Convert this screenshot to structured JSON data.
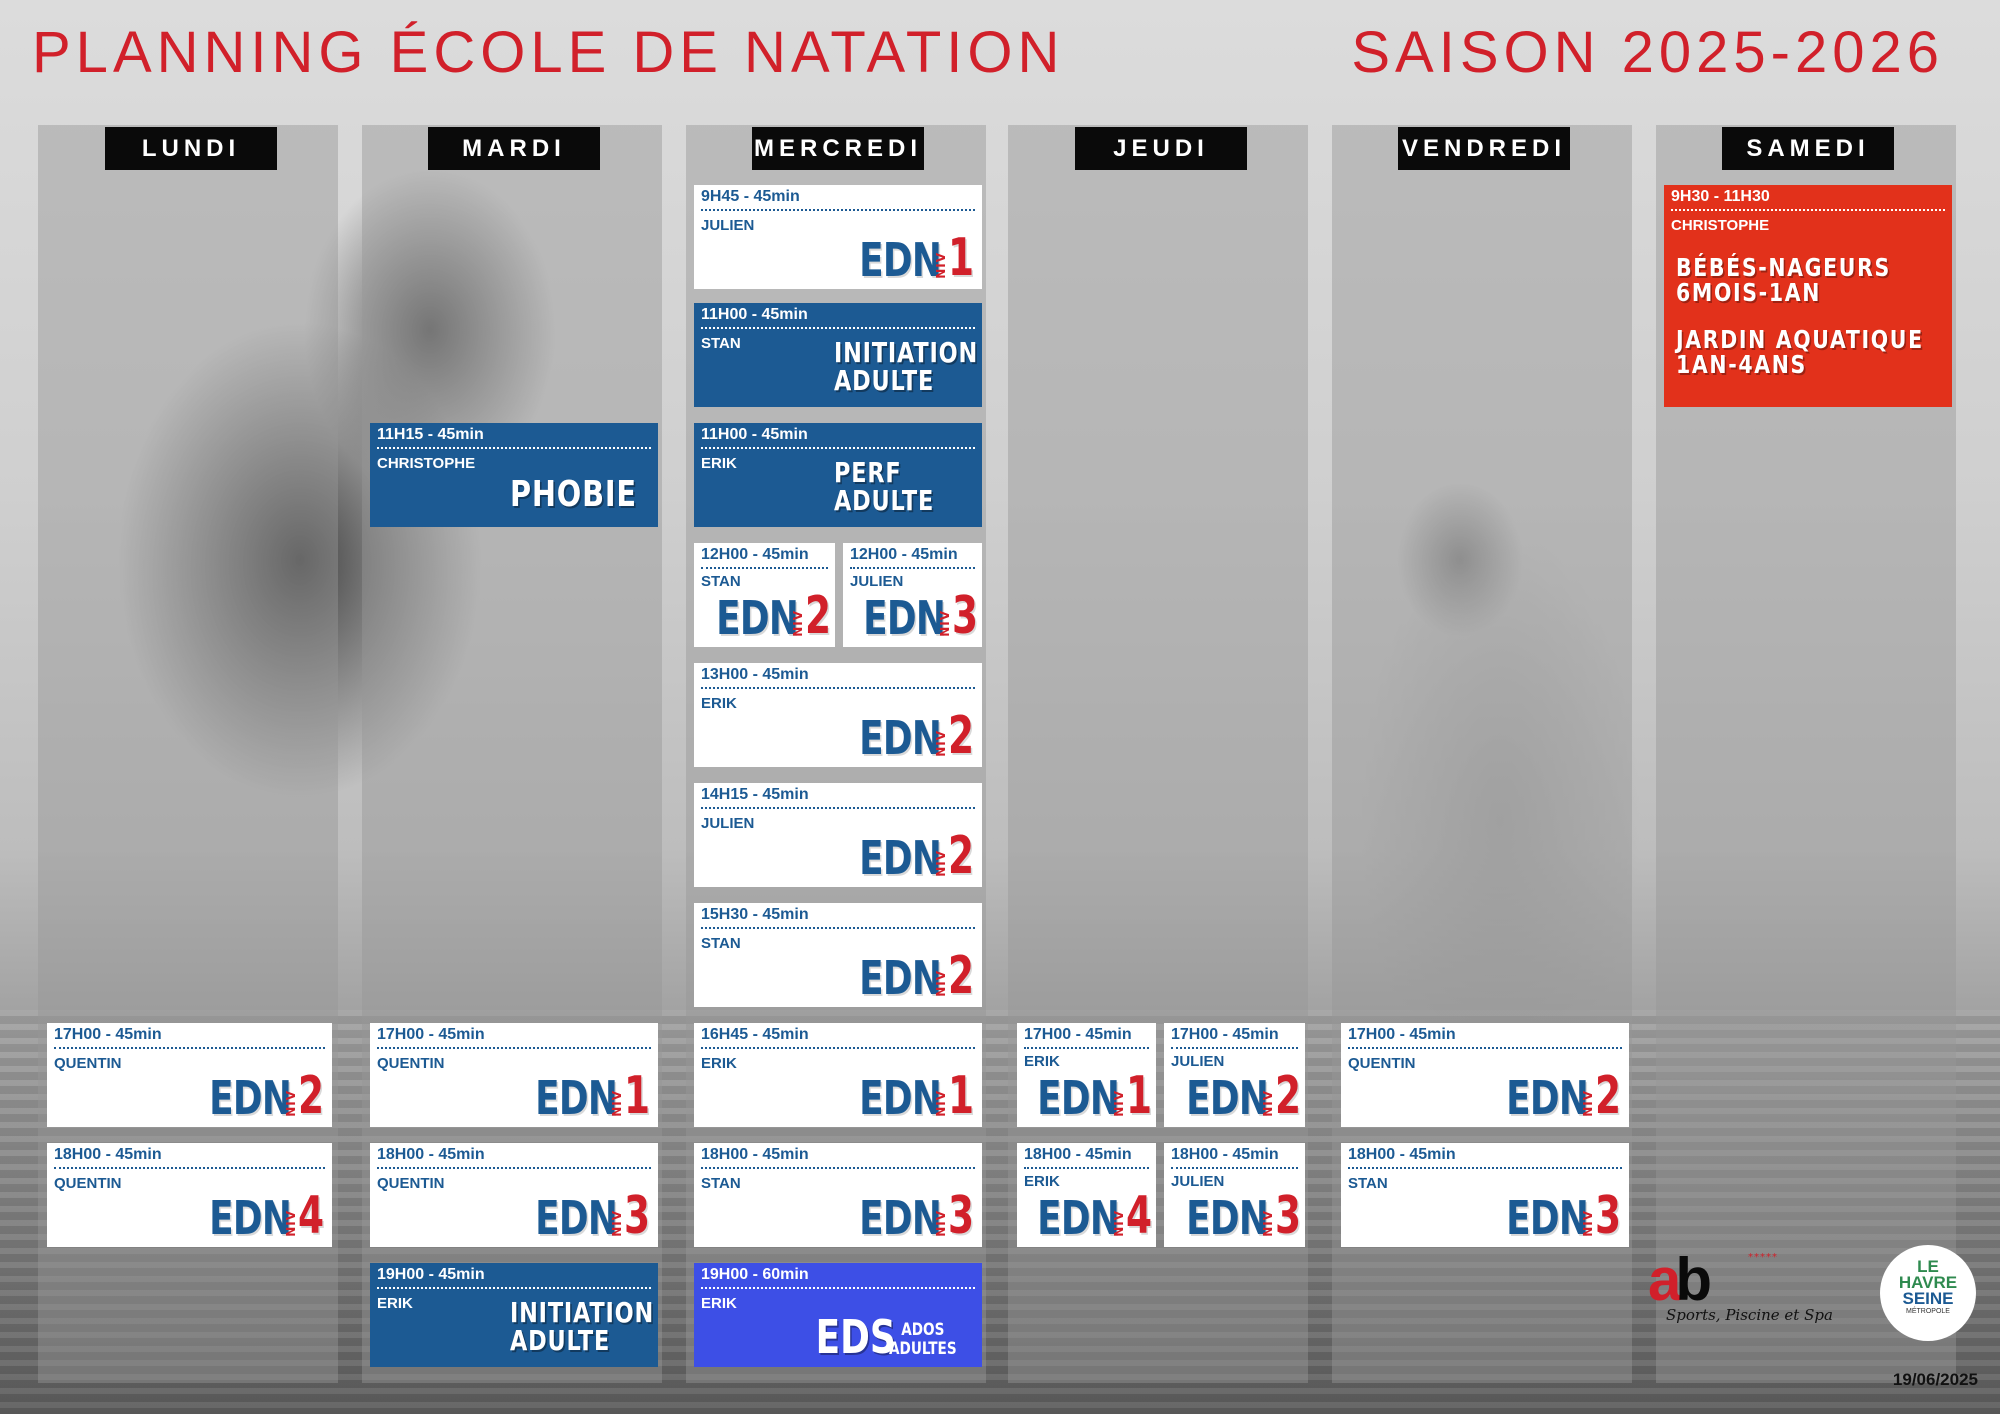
{
  "header": {
    "title": "PLANNING ÉCOLE DE NATATION",
    "season": "SAISON 2025-2026"
  },
  "days": [
    "LUNDI",
    "MARDI",
    "MERCREDI",
    "JEUDI",
    "VENDREDI",
    "SAMEDI"
  ],
  "sessions": {
    "mon_1700": {
      "time": "17H00 - 45min",
      "teacher": "QUENTIN",
      "course": "EDN",
      "niv": "NIV",
      "level": "2"
    },
    "mon_1800": {
      "time": "18H00 - 45min",
      "teacher": "QUENTIN",
      "course": "EDN",
      "niv": "NIV",
      "level": "4"
    },
    "tue_1115": {
      "time": "11H15 - 45min",
      "teacher": "CHRISTOPHE",
      "label": "PHOBIE"
    },
    "tue_1700": {
      "time": "17H00 - 45min",
      "teacher": "QUENTIN",
      "course": "EDN",
      "niv": "NIV",
      "level": "1"
    },
    "tue_1800": {
      "time": "18H00 - 45min",
      "teacher": "QUENTIN",
      "course": "EDN",
      "niv": "NIV",
      "level": "3"
    },
    "tue_1900": {
      "time": "19H00 - 45min",
      "teacher": "ERIK",
      "label": "INITIATION\nADULTE"
    },
    "wed_0945": {
      "time": "9H45 - 45min",
      "teacher": "JULIEN",
      "course": "EDN",
      "niv": "NIV",
      "level": "1"
    },
    "wed_1100a": {
      "time": "11H00 - 45min",
      "teacher": "STAN",
      "label": "INITIATION\nADULTE"
    },
    "wed_1100b": {
      "time": "11H00 - 45min",
      "teacher": "ERIK",
      "label": "PERF\nADULTE"
    },
    "wed_1200a": {
      "time": "12H00 - 45min",
      "teacher": "STAN",
      "course": "EDN",
      "niv": "NIV",
      "level": "2"
    },
    "wed_1200b": {
      "time": "12H00 - 45min",
      "teacher": "JULIEN",
      "course": "EDN",
      "niv": "NIV",
      "level": "3"
    },
    "wed_1300": {
      "time": "13H00 - 45min",
      "teacher": "ERIK",
      "course": "EDN",
      "niv": "NIV",
      "level": "2"
    },
    "wed_1415": {
      "time": "14H15 - 45min",
      "teacher": "JULIEN",
      "course": "EDN",
      "niv": "NIV",
      "level": "2"
    },
    "wed_1530": {
      "time": "15H30 - 45min",
      "teacher": "STAN",
      "course": "EDN",
      "niv": "NIV",
      "level": "2"
    },
    "wed_1645": {
      "time": "16H45 - 45min",
      "teacher": "ERIK",
      "course": "EDN",
      "niv": "NIV",
      "level": "1"
    },
    "wed_1800": {
      "time": "18H00 - 45min",
      "teacher": "STAN",
      "course": "EDN",
      "niv": "NIV",
      "level": "3"
    },
    "wed_1900": {
      "time": "19H00 - 60min",
      "teacher": "ERIK",
      "course": "EDS",
      "sub": "ADOS\nADULTES"
    },
    "thu_1700a": {
      "time": "17H00 - 45min",
      "teacher": "ERIK",
      "course": "EDN",
      "niv": "NIV",
      "level": "1"
    },
    "thu_1700b": {
      "time": "17H00 - 45min",
      "teacher": "JULIEN",
      "course": "EDN",
      "niv": "NIV",
      "level": "2"
    },
    "thu_1800a": {
      "time": "18H00 - 45min",
      "teacher": "ERIK",
      "course": "EDN",
      "niv": "NIV",
      "level": "4"
    },
    "thu_1800b": {
      "time": "18H00 - 45min",
      "teacher": "JULIEN",
      "course": "EDN",
      "niv": "NIV",
      "level": "3"
    },
    "fri_1700": {
      "time": "17H00 - 45min",
      "teacher": "QUENTIN",
      "course": "EDN",
      "niv": "NIV",
      "level": "2"
    },
    "fri_1800": {
      "time": "18H00 - 45min",
      "teacher": "STAN",
      "course": "EDN",
      "niv": "NIV",
      "level": "3"
    },
    "sat_0930": {
      "time": "9H30 - 11H30",
      "teacher": "CHRISTOPHE",
      "label1": "BÉBÉS-NAGEURS\n6MOIS-1AN",
      "label2": "JARDIN AQUATIQUE\n1AN-4ANS"
    }
  },
  "logos": {
    "ab_mark_a": "a",
    "ab_mark_b": "b",
    "ab_stars": "*****",
    "ab_tagline": "Sports, Piscine et Spa",
    "lh_line1": "LE",
    "lh_line2": "HAVRE",
    "lh_line3": "SEINE",
    "lh_line4": "MÉTROPOLE"
  },
  "footer": {
    "date": "19/06/2025"
  },
  "colors": {
    "title_red": "#d1202a",
    "card_blue": "#1c5a93",
    "card_bright_blue": "#3d4fe6",
    "card_red": "#e2311b",
    "day_bg": "#0a0a0a"
  }
}
